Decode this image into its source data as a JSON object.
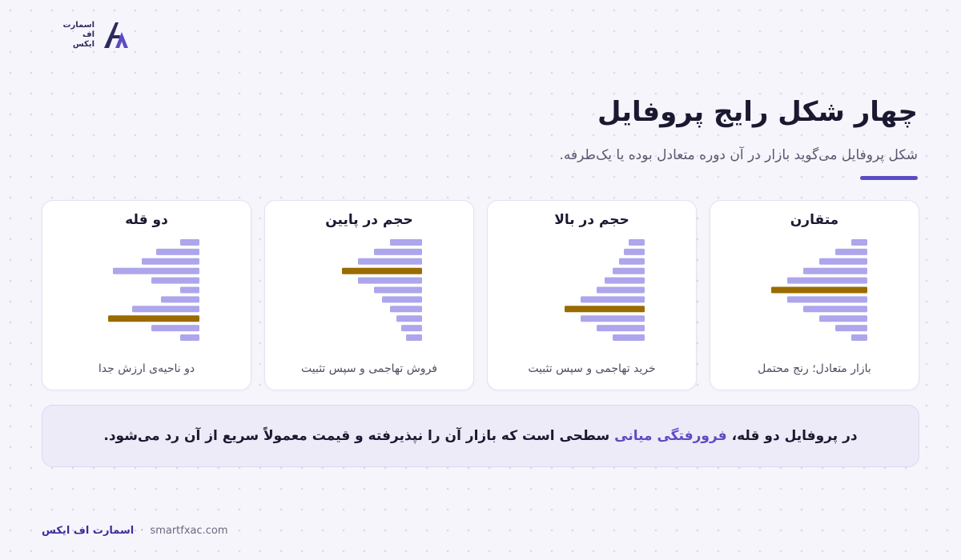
{
  "logo": {
    "line1": "اسمارت",
    "line2": "اف",
    "line3": "ایکس",
    "mark_icon": "fx-logo-icon"
  },
  "header": {
    "title": "چهار شکل رایج پروفایل",
    "subtitle": "شکل پروفایل می‌گوید بازار در آن دوره متعادل بوده یا یک‌طرفه."
  },
  "colors": {
    "bar": "#ada6ec",
    "highlight": "#9a6b00",
    "accent": "#5b4cc4"
  },
  "chart_data": [
    {
      "type": "bar",
      "title": "متقارن",
      "caption": "بازار متعادل؛ رنج محتمل",
      "values": [
        1,
        2,
        3,
        4,
        5,
        6,
        5,
        4,
        3,
        2,
        1
      ],
      "highlight_index": 5,
      "xlim": [
        0,
        6
      ]
    },
    {
      "type": "bar",
      "title": "حجم در بالا",
      "caption": "خرید تهاجمی و سپس تثبیت",
      "values": [
        1,
        1.3,
        1.6,
        2,
        2.5,
        3,
        4,
        5,
        4,
        3,
        2
      ],
      "highlight_index": 7,
      "xlim": [
        0,
        6
      ]
    },
    {
      "type": "bar",
      "title": "حجم در پایین",
      "caption": "فروش تهاجمی و سپس تثبیت",
      "values": [
        2,
        3,
        4,
        5,
        4,
        3,
        2.5,
        2,
        1.6,
        1.3,
        1
      ],
      "highlight_index": 3,
      "xlim": [
        0,
        6
      ]
    },
    {
      "type": "bar",
      "title": "دو قله",
      "caption": "دو ناحیه‌ی ارزش جدا",
      "values": [
        2,
        4.5,
        6,
        9,
        5,
        2,
        4,
        7,
        9.5,
        5,
        2
      ],
      "highlight_index": 8,
      "xlim": [
        0,
        10
      ]
    }
  ],
  "note": {
    "before": "در پروفایل دو قله، ",
    "highlight": "فرورفتگی میانی",
    "after": " سطحی است که بازار آن را نپذیرفته و قیمت معمولاً سریع از آن رد می‌شود."
  },
  "footer": {
    "brand": "اسمارت اف ایکس",
    "separator": "·",
    "site": "smartfxac.com"
  }
}
